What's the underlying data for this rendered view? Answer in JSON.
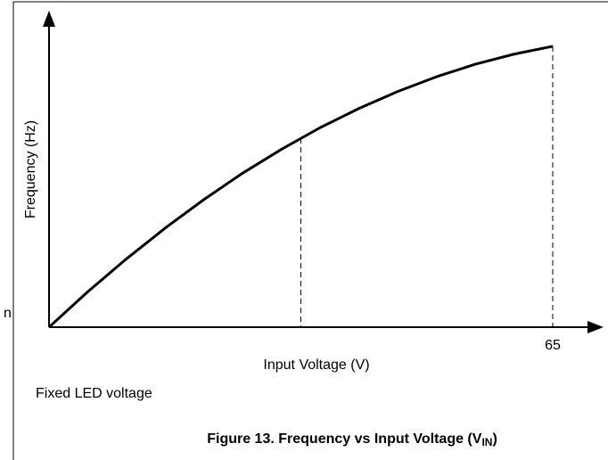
{
  "chart_data": {
    "type": "line",
    "xlabel": "Input Voltage (V)",
    "ylabel": "Frequency (Hz)",
    "note": "Fixed LED voltage",
    "caption": {
      "text": "Figure 13. Frequency vs Input Voltage (V",
      "subscript": "IN",
      "tail": ")"
    },
    "side_text": "n",
    "x": [
      0,
      5,
      10,
      15,
      20,
      25,
      30,
      35,
      40,
      45,
      50,
      55,
      60,
      65
    ],
    "series": [
      {
        "name": "Frequency",
        "color": "#000000",
        "values": [
          0,
          11.3,
          21.8,
          31.6,
          40.7,
          49.1,
          56.7,
          63.6,
          69.7,
          75.1,
          79.8,
          83.8,
          87.0,
          89.5
        ]
      }
    ],
    "reference_lines": [
      {
        "x": 32.5,
        "y": 60.2
      },
      {
        "x": 65,
        "y": 89.5
      }
    ],
    "xlim": [
      0,
      70
    ],
    "xticks": [
      65
    ],
    "ylim": [
      0,
      100
    ]
  }
}
